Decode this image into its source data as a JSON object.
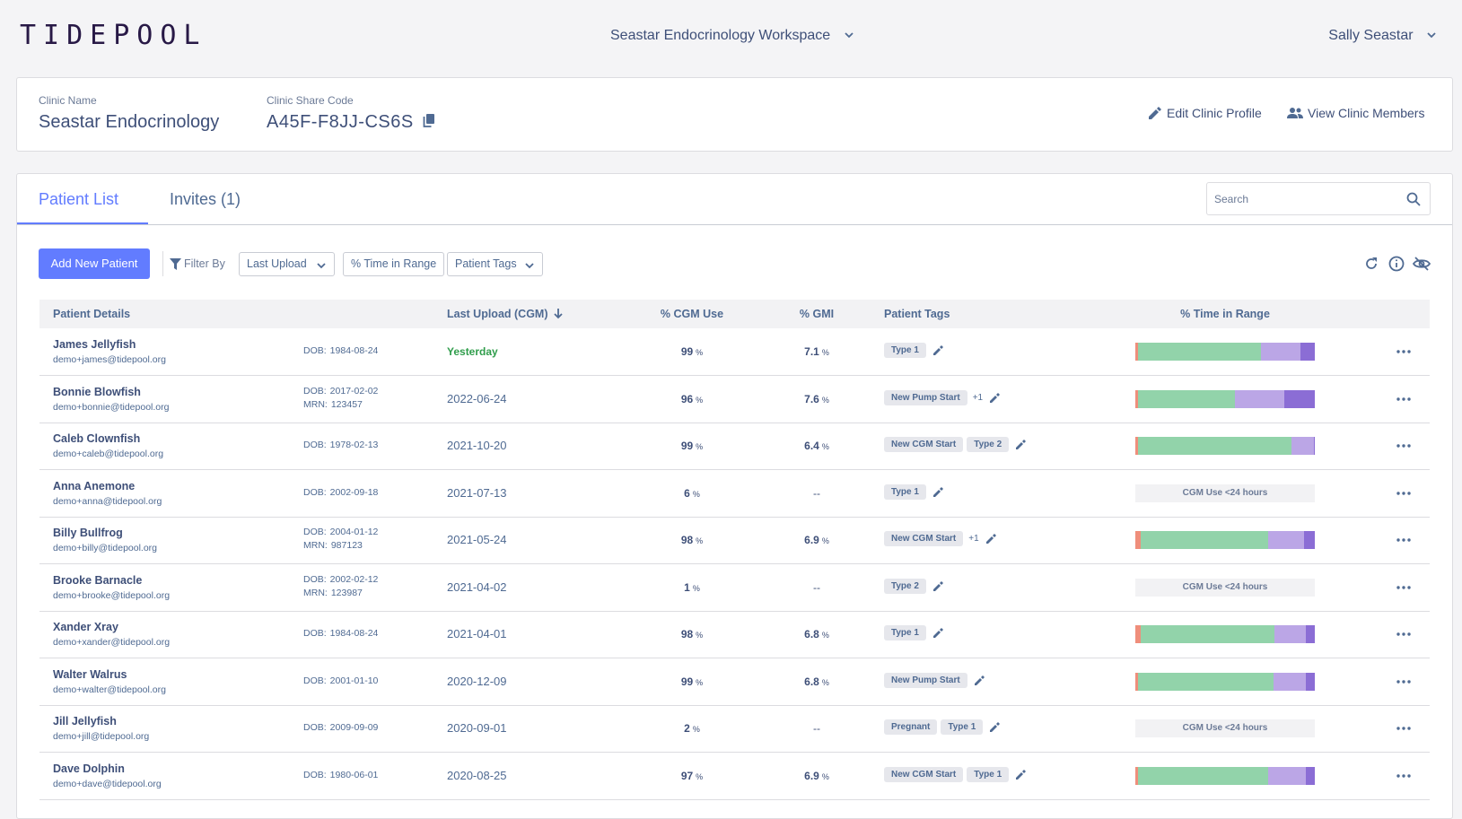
{
  "header": {
    "logo": "TIDEPOOL",
    "workspace": "Seastar Endocrinology Workspace",
    "user": "Sally Seastar"
  },
  "clinic": {
    "name_label": "Clinic Name",
    "name": "Seastar Endocrinology",
    "code_label": "Clinic Share Code",
    "code": "A45F-F8JJ-CS6S",
    "actions": [
      "Edit Clinic Profile",
      "View Clinic Members"
    ]
  },
  "tabs": [
    "Patient List",
    "Invites (1)"
  ],
  "search_placeholder": "Search",
  "toolbar": {
    "add": "Add New Patient",
    "filter_label": "Filter By",
    "filters": [
      "Last Upload",
      "% Time in Range",
      "Patient Tags"
    ]
  },
  "table": {
    "columns": [
      "Patient Details",
      "Last Upload (CGM)",
      "% CGM Use",
      "% GMI",
      "Patient Tags",
      "% Time in Range"
    ],
    "dob_label": "DOB:",
    "mrn_label": "MRN:",
    "percent_unit": "%",
    "empty_value": "--",
    "tir_empty": "CGM Use <24 hours",
    "tir_colors": [
      "#ef8e7b",
      "#92d3aa",
      "#bba6e6",
      "#8b6dd5"
    ],
    "rows": [
      {
        "name": "James Jellyfish",
        "email": "demo+james@tidepool.org",
        "dob": "1984-08-24",
        "last_upload": "Yesterday",
        "highlight": true,
        "cgm_use": 99,
        "gmi": 7.1,
        "tags": [
          "Type 1"
        ],
        "tir": [
          1.5,
          68.5,
          22,
          8
        ]
      },
      {
        "name": "Bonnie Blowfish",
        "email": "demo+bonnie@tidepool.org",
        "dob": "2017-02-02",
        "mrn": "123457",
        "last_upload": "2022-06-24",
        "cgm_use": 96,
        "gmi": 7.6,
        "tags": [
          "New Pump Start"
        ],
        "more_tags": "+1",
        "tir": [
          1.5,
          54,
          27.5,
          17
        ]
      },
      {
        "name": "Caleb Clownfish",
        "email": "demo+caleb@tidepool.org",
        "dob": "1978-02-13",
        "last_upload": "2021-10-20",
        "cgm_use": 99,
        "gmi": 6.4,
        "tags": [
          "New CGM Start",
          "Type 2"
        ],
        "tir": [
          1.5,
          85.5,
          12.5,
          0.5
        ]
      },
      {
        "name": "Anna Anemone",
        "email": "demo+anna@tidepool.org",
        "dob": "2002-09-18",
        "last_upload": "2021-07-13",
        "cgm_use": 6,
        "gmi": null,
        "tags": [
          "Type 1"
        ],
        "tir": null
      },
      {
        "name": "Billy Bullfrog",
        "email": "demo+billy@tidepool.org",
        "dob": "2004-01-12",
        "mrn": "987123",
        "last_upload": "2021-05-24",
        "cgm_use": 98,
        "gmi": 6.9,
        "tags": [
          "New CGM Start"
        ],
        "more_tags": "+1",
        "tir": [
          3,
          71,
          20,
          6
        ]
      },
      {
        "name": "Brooke Barnacle",
        "email": "demo+brooke@tidepool.org",
        "dob": "2002-02-12",
        "mrn": "123987",
        "last_upload": "2021-04-02",
        "cgm_use": 1,
        "gmi": null,
        "tags": [
          "Type 2"
        ],
        "tir": null
      },
      {
        "name": "Xander Xray",
        "email": "demo+xander@tidepool.org",
        "dob": "1984-08-24",
        "last_upload": "2021-04-01",
        "cgm_use": 98,
        "gmi": 6.8,
        "tags": [
          "Type 1"
        ],
        "tir": [
          3,
          74.5,
          17.5,
          5
        ]
      },
      {
        "name": "Walter Walrus",
        "email": "demo+walter@tidepool.org",
        "dob": "2001-01-10",
        "last_upload": "2020-12-09",
        "cgm_use": 99,
        "gmi": 6.8,
        "tags": [
          "New Pump Start"
        ],
        "tir": [
          1.5,
          75.5,
          18,
          5
        ]
      },
      {
        "name": "Jill Jellyfish",
        "email": "demo+jill@tidepool.org",
        "dob": "2009-09-09",
        "last_upload": "2020-09-01",
        "cgm_use": 2,
        "gmi": null,
        "tags": [
          "Pregnant",
          "Type 1"
        ],
        "tir": null
      },
      {
        "name": "Dave Dolphin",
        "email": "demo+dave@tidepool.org",
        "dob": "1980-06-01",
        "last_upload": "2020-08-25",
        "cgm_use": 97,
        "gmi": 6.9,
        "tags": [
          "New CGM Start",
          "Type 1"
        ],
        "tir": [
          1.5,
          72.5,
          21,
          5
        ]
      }
    ]
  }
}
